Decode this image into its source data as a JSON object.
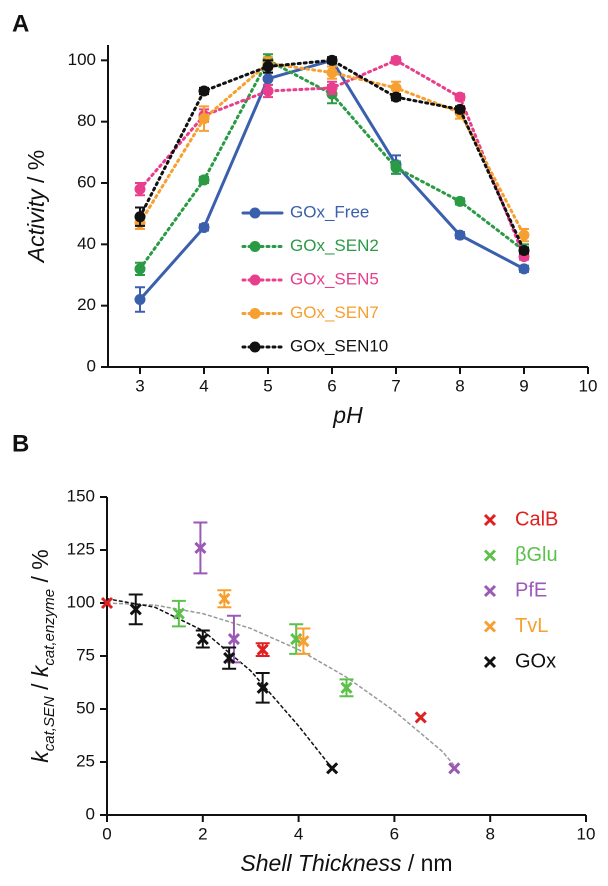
{
  "chart_data": [
    {
      "type": "line",
      "panel_label": "A",
      "xlabel": "pH",
      "ylabel_parts": [
        {
          "text": "Activity",
          "italic": true
        },
        {
          "text": " / %"
        }
      ],
      "x": [
        3,
        4,
        5,
        6,
        7,
        8,
        9
      ],
      "xlim": [
        2.5,
        10
      ],
      "ylim": [
        0,
        105
      ],
      "xticks": [
        3,
        4,
        5,
        6,
        7,
        8,
        9,
        10
      ],
      "yticks": [
        0,
        20,
        40,
        60,
        80,
        100
      ],
      "series": [
        {
          "name": "GOx_Free",
          "color": "#3a5fad",
          "line_style": "solid",
          "values": [
            22,
            45.5,
            94,
            100,
            66,
            43,
            32
          ],
          "errors": [
            4,
            1,
            2,
            1,
            3,
            1,
            1
          ]
        },
        {
          "name": "GOx_SEN2",
          "color": "#2a9a45",
          "line_style": "dotted",
          "values": [
            32,
            61,
            100,
            89,
            65,
            54,
            38
          ],
          "errors": [
            2,
            1,
            2,
            3,
            2,
            1,
            2
          ]
        },
        {
          "name": "GOx_SEN5",
          "color": "#e83e8c",
          "line_style": "dotted",
          "values": [
            58,
            82,
            90,
            91,
            100,
            88,
            36
          ],
          "errors": [
            2,
            2,
            2,
            2,
            1,
            1,
            1
          ]
        },
        {
          "name": "GOx_SEN7",
          "color": "#f5a030",
          "line_style": "dotted",
          "values": [
            47,
            81,
            99,
            96,
            91,
            83,
            43
          ],
          "errors": [
            2,
            4,
            2,
            2,
            2,
            2,
            2
          ]
        },
        {
          "name": "GOx_SEN10",
          "color": "#111111",
          "line_style": "dotted",
          "values": [
            49,
            90,
            98,
            100,
            88,
            84,
            38
          ],
          "errors": [
            3,
            1,
            2,
            1,
            1,
            1,
            1
          ]
        }
      ]
    },
    {
      "type": "scatter",
      "panel_label": "B",
      "xlabel_parts": [
        {
          "text": "Shell Thickness",
          "italic": true
        },
        {
          "text": " / nm"
        }
      ],
      "ylabel_parts": [
        {
          "text": "k",
          "italic": true
        },
        {
          "text": "cat,SEN",
          "italic": true,
          "sub": true
        },
        {
          "text": " / "
        },
        {
          "text": "k",
          "italic": true
        },
        {
          "text": "cat,enzyme",
          "italic": true,
          "sub": true
        },
        {
          "text": "  / %"
        }
      ],
      "xlim": [
        0,
        10
      ],
      "ylim": [
        0,
        150
      ],
      "xticks": [
        0,
        2,
        4,
        6,
        8,
        10
      ],
      "yticks": [
        0,
        25,
        50,
        75,
        100,
        125,
        150
      ],
      "series": [
        {
          "name": "CalB",
          "color": "#e02020",
          "x": [
            0,
            3.25,
            6.55
          ],
          "values": [
            100,
            78,
            46
          ],
          "errors": [
            null,
            3,
            null
          ]
        },
        {
          "name": "βGlu",
          "color": "#5cc04a",
          "x": [
            1.5,
            3.95,
            5.0
          ],
          "values": [
            95,
            83,
            60
          ],
          "errors": [
            6,
            7,
            4
          ]
        },
        {
          "name": "PfE",
          "color": "#9b59b6",
          "x": [
            1.95,
            2.65,
            7.25
          ],
          "values": [
            126,
            83,
            22
          ],
          "errors": [
            12,
            11,
            null
          ]
        },
        {
          "name": "TvL",
          "color": "#f5a030",
          "x": [
            2.45,
            4.1
          ],
          "values": [
            102,
            82
          ],
          "errors": [
            4,
            6
          ]
        },
        {
          "name": "GOx",
          "color": "#111111",
          "x": [
            0.6,
            2.0,
            2.55,
            3.25,
            4.7
          ],
          "values": [
            97,
            83,
            74,
            60,
            22
          ],
          "errors": [
            7,
            4,
            5,
            7,
            null
          ]
        }
      ],
      "fits": [
        {
          "color": "#999999",
          "x": [
            0,
            1,
            2,
            3,
            4,
            5,
            6,
            7,
            7.3
          ],
          "y": [
            100,
            99,
            95,
            88,
            78,
            65,
            49,
            30,
            22
          ]
        },
        {
          "color": "#111111",
          "x": [
            0,
            1,
            2,
            3,
            4,
            4.7
          ],
          "y": [
            102,
            98,
            87,
            68,
            42,
            22
          ]
        }
      ]
    }
  ]
}
